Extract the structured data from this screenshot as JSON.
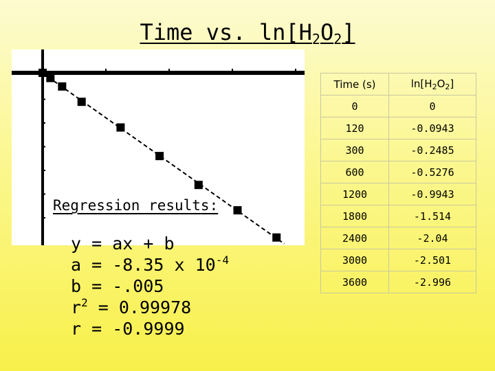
{
  "title": {
    "prefix": "Time vs. ln[H",
    "sub1": "2",
    "mid": "O",
    "sub2": "2",
    "suffix": "]"
  },
  "regression": {
    "heading": "Regression results:",
    "line_eq": "y = ax + b",
    "line_a": "a = -8.35 x 10",
    "line_a_exp": "-4",
    "line_b": "b = -.005",
    "line_r2_prefix": "r",
    "line_r2_exp": "2",
    "line_r2_value": " = 0.99978",
    "line_r": "r = -0.9999"
  },
  "table": {
    "header_time": "Time (s)",
    "header_ln": {
      "prefix": "ln[H",
      "sub1": "2",
      "mid": "O",
      "sub2": "2",
      "suffix": "]"
    },
    "rows": [
      {
        "time": "0",
        "ln": "0"
      },
      {
        "time": "120",
        "ln": "-0.0943"
      },
      {
        "time": "300",
        "ln": "-0.2485"
      },
      {
        "time": "600",
        "ln": "-0.5276"
      },
      {
        "time": "1200",
        "ln": "-0.9943"
      },
      {
        "time": "1800",
        "ln": "-1.514"
      },
      {
        "time": "2400",
        "ln": "-2.04"
      },
      {
        "time": "3000",
        "ln": "-2.501"
      },
      {
        "time": "3600",
        "ln": "-2.996"
      }
    ]
  },
  "chart_data": {
    "type": "scatter",
    "title": "",
    "xlabel": "",
    "ylabel": "",
    "x_axis_label_hidden": true,
    "points_marker": "square",
    "regression_line": {
      "slope": -0.000835,
      "intercept": -0.005,
      "style": "dashed"
    },
    "x": [
      0,
      120,
      300,
      600,
      1200,
      1800,
      2400,
      3000,
      3600
    ],
    "y": [
      0,
      -0.0943,
      -0.2485,
      -0.5276,
      -0.9943,
      -1.514,
      -2.04,
      -2.501,
      -2.996
    ],
    "ticks": {
      "x_count": 4,
      "y_count": 6
    },
    "grid": false,
    "colors": {
      "marker": "#000000",
      "axes": "#000000",
      "background": "#ffffff"
    }
  }
}
